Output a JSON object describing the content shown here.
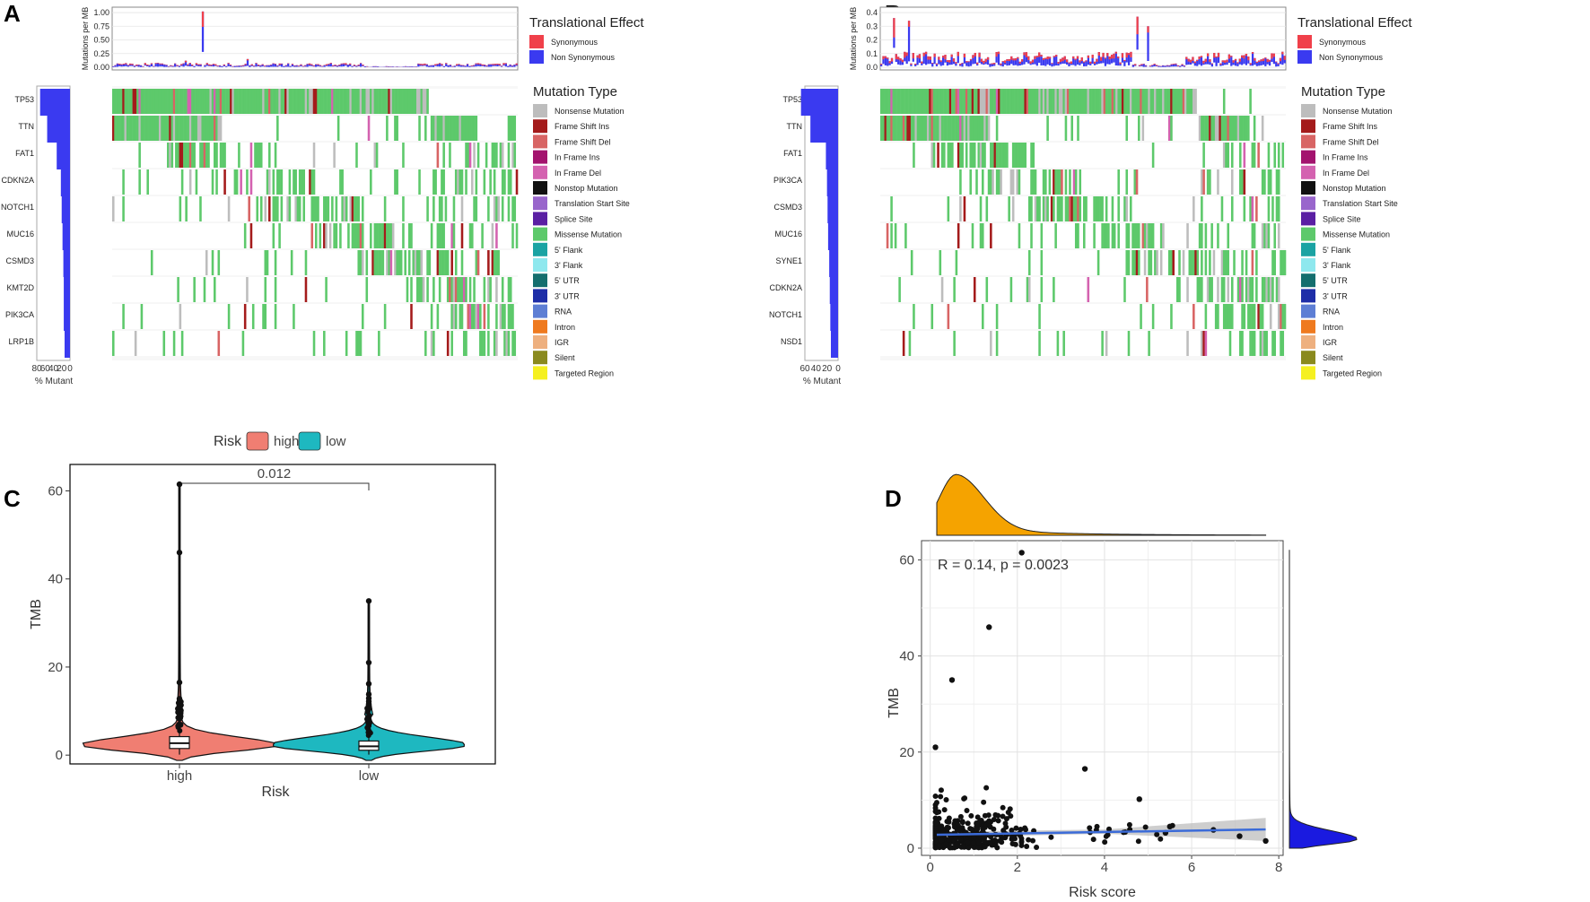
{
  "chart_data": [
    {
      "panel": "A",
      "type": "oncoplot",
      "tmb_bar": {
        "ylabel": "Mutations per MB",
        "yticks": [
          "0.00",
          "0.25",
          "0.50",
          "0.75",
          "1.00"
        ],
        "ylim": [
          0,
          1.05
        ],
        "peaks": [
          [
            0.22,
            1.02
          ],
          [
            0.33,
            0.15
          ],
          [
            0.18,
            0.12
          ],
          [
            0.55,
            0.1
          ]
        ],
        "base": 0.07
      },
      "legend_title": "Translational Effect",
      "effects": [
        {
          "label": "Synonymous",
          "color": "#f0404a"
        },
        {
          "label": "Non Synonymous",
          "color": "#3a3af0"
        }
      ],
      "genes": [
        "TP53",
        "TTN",
        "FAT1",
        "CDKN2A",
        "NOTCH1",
        "MUC16",
        "CSMD3",
        "KMT2D",
        "PIK3CA",
        "LRP1B"
      ],
      "pct_mutant": [
        72,
        55,
        32,
        22,
        20,
        18,
        16,
        15,
        15,
        13
      ],
      "pct_max": 80,
      "pct_ticks": [
        "80",
        "60",
        "40",
        "20",
        "0"
      ],
      "pct_label": "% Mutant"
    },
    {
      "panel": "B",
      "type": "oncoplot",
      "tmb_bar": {
        "ylabel": "Mutations per MB",
        "yticks": [
          "0.0",
          "0.1",
          "0.2",
          "0.3",
          "0.4"
        ],
        "ylim": [
          0,
          0.42
        ],
        "peaks": [
          [
            0.03,
            0.36
          ],
          [
            0.07,
            0.34
          ],
          [
            0.63,
            0.37
          ],
          [
            0.66,
            0.3
          ]
        ],
        "base": 0.1
      },
      "legend_title": "Translational Effect",
      "effects": [
        {
          "label": "Synonymous",
          "color": "#f0404a"
        },
        {
          "label": "Non Synonymous",
          "color": "#3a3af0"
        }
      ],
      "genes": [
        "TP53",
        "TTN",
        "FAT1",
        "PIK3CA",
        "CSMD3",
        "MUC16",
        "SYNE1",
        "CDKN2A",
        "NOTCH1",
        "NSD1"
      ],
      "pct_mutant": [
        67,
        50,
        22,
        20,
        19,
        18,
        16,
        15,
        14,
        13
      ],
      "pct_max": 60,
      "pct_ticks": [
        "60",
        "40",
        "20",
        "0"
      ],
      "pct_label": "% Mutant"
    },
    {
      "panel": "C",
      "type": "violin",
      "legend_title": "Risk",
      "groups": [
        {
          "name": "high",
          "color": "#f07e72",
          "q1": 1.5,
          "median": 2.7,
          "q3": 4.2,
          "whisker_low": 0.1,
          "whisker_high": 12,
          "outliers": [
            61.5,
            46,
            16.5,
            12.8,
            11.3,
            10.6,
            10.1
          ]
        },
        {
          "name": "low",
          "color": "#1eb8c0",
          "q1": 1.1,
          "median": 2.0,
          "q3": 3.2,
          "whisker_low": 0.1,
          "whisker_high": 10,
          "outliers": [
            35,
            21,
            16.2,
            13.8,
            12.9,
            12.2,
            11.6,
            11.1
          ]
        }
      ],
      "pvalue": "0.012",
      "xlabel": "Risk",
      "ylabel": "TMB",
      "ylim": [
        -2,
        66
      ],
      "yticks": [
        0,
        20,
        40,
        60
      ]
    },
    {
      "panel": "D",
      "type": "scatter",
      "annotation": "R = 0.14, p = 0.0023",
      "xlabel": "Risk score",
      "ylabel": "TMB",
      "xlim": [
        -0.2,
        8.1
      ],
      "ylim": [
        -1.5,
        64
      ],
      "xticks": [
        0,
        2,
        4,
        6,
        8
      ],
      "yticks": [
        0,
        20,
        40,
        60
      ],
      "regression": {
        "x0": 0.15,
        "y0": 2.8,
        "x1": 7.7,
        "y1": 3.9
      },
      "highlight_points": [
        [
          2.1,
          61.5
        ],
        [
          1.35,
          46
        ],
        [
          0.5,
          35
        ],
        [
          0.12,
          21
        ],
        [
          3.55,
          16.5
        ],
        [
          4.8,
          10.2
        ],
        [
          7.7,
          1.5
        ],
        [
          7.1,
          2.5
        ],
        [
          5.5,
          4.5
        ],
        [
          6.5,
          3.8
        ],
        [
          5.4,
          3.2
        ]
      ],
      "marginal_x_peak": 0.6,
      "marginal_y_peak": 1.8
    }
  ]
}
